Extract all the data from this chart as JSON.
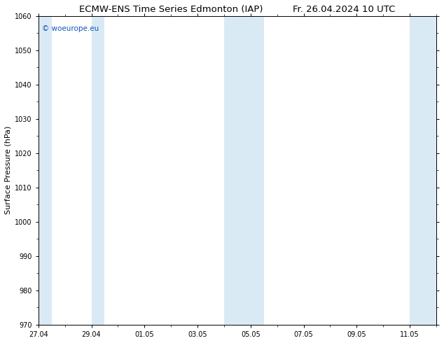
{
  "title_left": "ECMW-ENS Time Series Edmonton (IAP)",
  "title_right": "Fr. 26.04.2024 10 UTC",
  "ylabel": "Surface Pressure (hPa)",
  "ylim": [
    970,
    1060
  ],
  "yticks": [
    970,
    980,
    990,
    1000,
    1010,
    1020,
    1030,
    1040,
    1050,
    1060
  ],
  "x_tick_labels": [
    "27.04",
    "29.04",
    "01.05",
    "03.05",
    "05.05",
    "07.05",
    "09.05",
    "11.05"
  ],
  "x_tick_days": [
    0,
    2,
    4,
    6,
    8,
    10,
    12,
    14
  ],
  "shaded_bands": [
    {
      "start_day": 0,
      "end_day": 0.5,
      "color": "#daeaf5"
    },
    {
      "start_day": 2,
      "end_day": 2.5,
      "color": "#daeaf5"
    },
    {
      "start_day": 7,
      "end_day": 8.5,
      "color": "#daeaf5"
    },
    {
      "start_day": 14,
      "end_day": 15,
      "color": "#daeaf5"
    }
  ],
  "background_color": "#ffffff",
  "watermark_text": "© woeurope.eu",
  "watermark_color": "#1155bb",
  "tick_label_fontsize": 7,
  "title_fontsize": 9.5,
  "ylabel_fontsize": 8
}
